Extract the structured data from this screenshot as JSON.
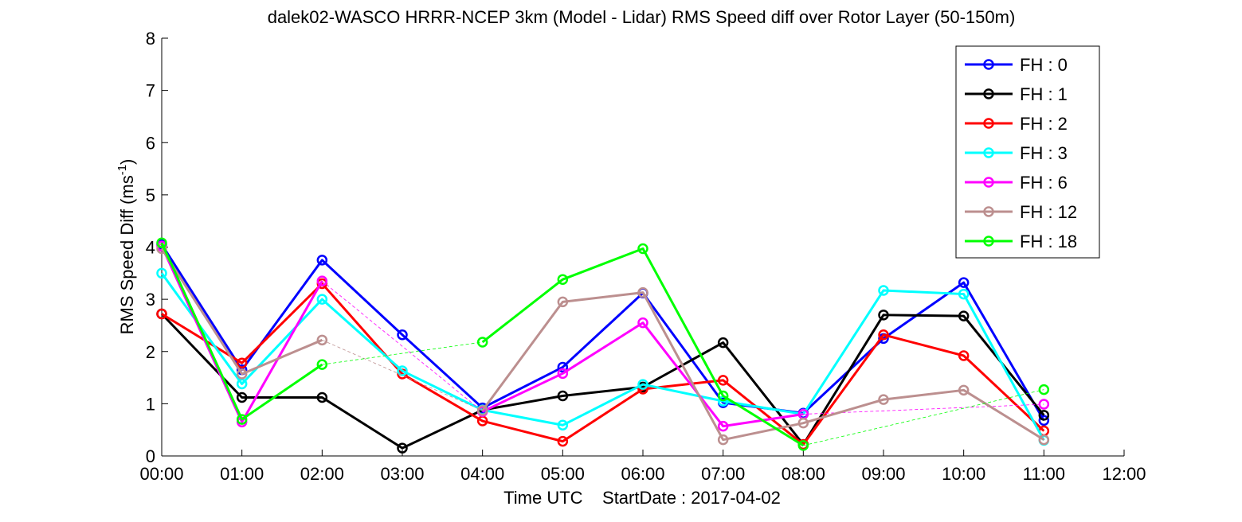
{
  "chart_data": {
    "type": "line",
    "title": "dalek02-WASCO HRRR-NCEP 3km (Model - Lidar) RMS Speed diff over Rotor Layer (50-150m)",
    "xlabel": "Time UTC    StartDate : 2017-04-02",
    "ylabel_main": "RMS Speed Diff (ms",
    "ylabel_sup": "-1",
    "ylabel_close": ")",
    "x_ticks": [
      "00:00",
      "01:00",
      "02:00",
      "03:00",
      "04:00",
      "05:00",
      "06:00",
      "07:00",
      "08:00",
      "09:00",
      "10:00",
      "11:00",
      "12:00"
    ],
    "y_ticks": [
      "0",
      "1",
      "2",
      "3",
      "4",
      "5",
      "6",
      "7",
      "8"
    ],
    "xlim": [
      0,
      12
    ],
    "ylim": [
      0,
      8
    ],
    "grid": false,
    "legend_position": "top-right",
    "series": [
      {
        "name": "FH : 0",
        "color": "#0000ff",
        "values": [
          4.05,
          1.65,
          3.75,
          2.32,
          0.92,
          1.7,
          3.12,
          1.02,
          0.82,
          2.25,
          3.32,
          0.68
        ]
      },
      {
        "name": "FH : 1",
        "color": "#000000",
        "values": [
          2.72,
          1.12,
          1.12,
          0.15,
          0.88,
          1.15,
          1.32,
          2.17,
          0.22,
          2.7,
          2.68,
          0.78
        ]
      },
      {
        "name": "FH : 2",
        "color": "#ff0000",
        "values": [
          2.72,
          1.78,
          3.3,
          1.57,
          0.67,
          0.28,
          1.28,
          1.45,
          0.22,
          2.32,
          1.92,
          0.48
        ]
      },
      {
        "name": "FH : 3",
        "color": "#00ffff",
        "values": [
          3.5,
          1.38,
          3.0,
          1.63,
          0.88,
          0.59,
          1.37,
          1.05,
          0.8,
          3.17,
          3.1,
          0.3
        ]
      },
      {
        "name": "FH : 6",
        "color": "#ff00ff",
        "values": [
          4.02,
          0.65,
          3.35,
          null,
          0.85,
          1.58,
          2.55,
          0.57,
          0.8,
          null,
          null,
          0.99
        ]
      },
      {
        "name": "FH : 12",
        "color": "#bc8f8f",
        "values": [
          3.97,
          1.57,
          2.22,
          null,
          0.87,
          2.95,
          3.13,
          0.31,
          0.63,
          1.08,
          1.26,
          0.31
        ]
      },
      {
        "name": "FH : 18",
        "color": "#00ff00",
        "values": [
          4.08,
          0.7,
          1.75,
          null,
          2.18,
          3.38,
          3.97,
          1.15,
          0.2,
          null,
          null,
          1.27
        ]
      }
    ]
  }
}
